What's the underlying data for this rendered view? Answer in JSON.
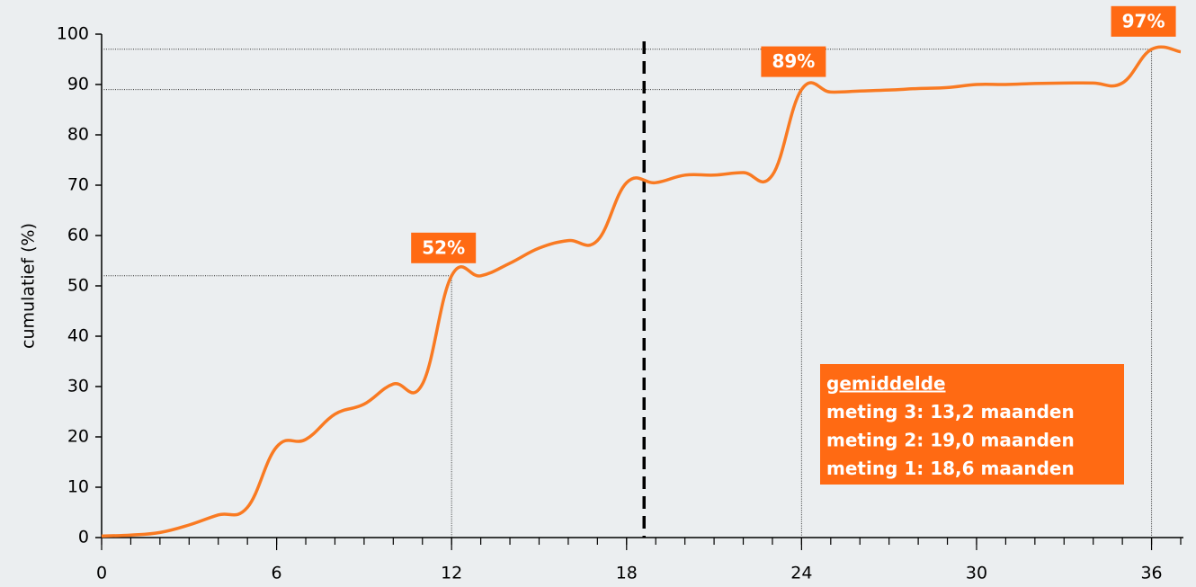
{
  "chart_data": {
    "type": "line",
    "ylabel": "cumulatief (%)",
    "x": [
      0,
      1,
      2,
      3,
      4,
      5,
      6,
      7,
      8,
      9,
      10,
      11,
      12,
      13,
      14,
      15,
      16,
      17,
      18,
      19,
      20,
      21,
      22,
      23,
      24,
      25,
      26,
      27,
      28,
      29,
      30,
      31,
      32,
      33,
      34,
      35,
      36,
      37
    ],
    "series": [
      {
        "name": "cumulatief",
        "color": "#f97a22",
        "values": [
          0.3,
          0.5,
          1,
          2.5,
          4.5,
          6,
          18,
          19.5,
          24.5,
          26.5,
          30.5,
          30.5,
          52,
          52,
          54.5,
          57.5,
          59,
          59,
          70.5,
          70.5,
          72,
          72,
          72.5,
          72,
          89,
          88.5,
          88.7,
          88.9,
          89.2,
          89.4,
          90,
          90,
          90.2,
          90.3,
          90.3,
          90.3,
          97,
          96.5
        ]
      }
    ],
    "xlim": [
      0,
      37
    ],
    "xticks": [
      0,
      6,
      12,
      18,
      24,
      30,
      36
    ],
    "ylim": [
      0,
      100
    ],
    "yticks": [
      0,
      10,
      20,
      30,
      40,
      50,
      60,
      70,
      80,
      90,
      100
    ],
    "annotations": [
      {
        "text": "52%",
        "x": 12,
        "y": 52
      },
      {
        "text": "89%",
        "x": 24,
        "y": 89
      },
      {
        "text": "97%",
        "x": 36,
        "y": 97
      }
    ],
    "mean_line": 18.6,
    "box_color": "#ff6a13",
    "box_lines": [
      "gemiddelde",
      "meting 3: 13,2 maanden",
      "meting 2: 19,0 maanden",
      "meting 1: 18,6 maanden"
    ]
  }
}
